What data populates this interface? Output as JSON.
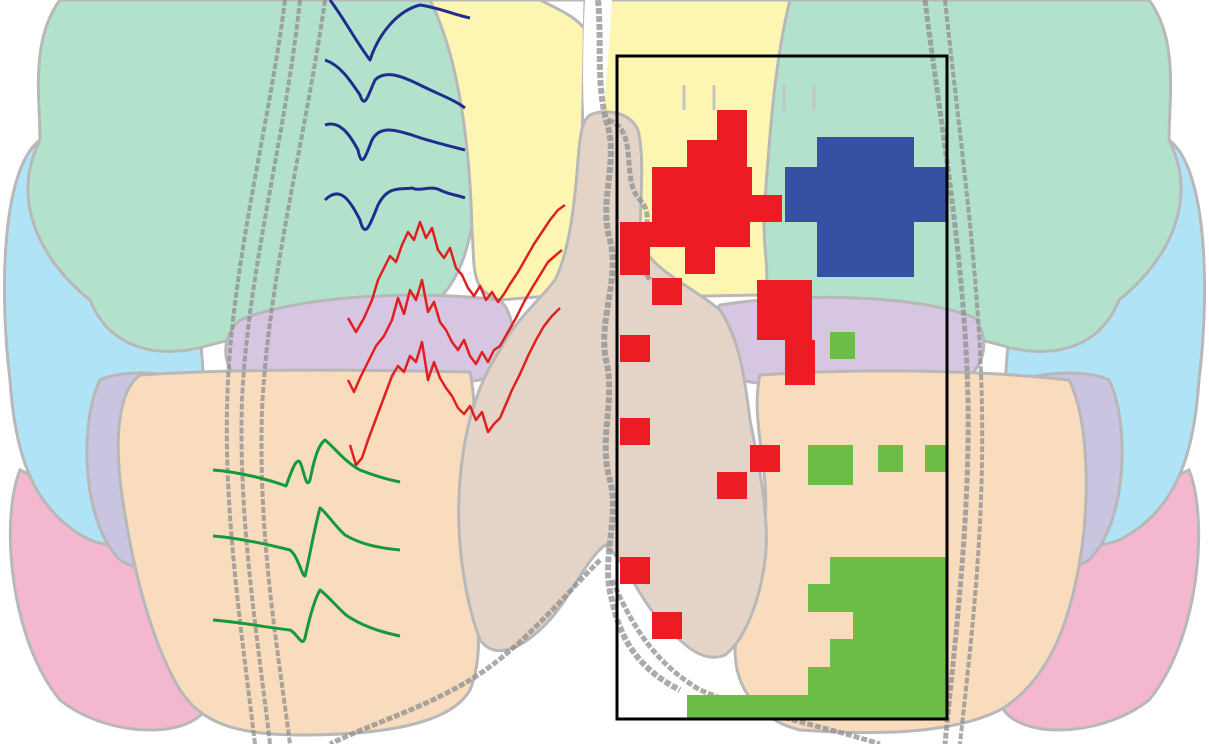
{
  "figure": {
    "description_colors": {
      "region_teal": "#b2e2cc",
      "region_yellow": "#fdf6b2",
      "region_lilac": "#d6c6e1",
      "region_peach": "#f8dcbd",
      "region_blue": "#afe3f5",
      "region_pink": "#f4b7d0",
      "region_lavender": "#c9c4e0",
      "region_beige": "#e4d4c8",
      "outline": "#b8b8b8",
      "rope": "#8f8f8f",
      "trace_blue": "#1f2d8c",
      "trace_red": "#e02020",
      "trace_green": "#139a3a",
      "cell_red": "#ed1c24",
      "cell_blue": "#3651a3",
      "cell_green": "#6cbd45",
      "box_frame": "#000000"
    },
    "trace_groups": [
      {
        "name": "blue-waveforms",
        "color": "#1f2d8c",
        "count": 4
      },
      {
        "name": "red-waveforms",
        "color": "#e02020",
        "count": 3
      },
      {
        "name": "green-waveforms",
        "color": "#139a3a",
        "count": 3
      }
    ],
    "grid_cell_groups": [
      {
        "name": "red-cells",
        "color": "#ed1c24"
      },
      {
        "name": "blue-cells",
        "color": "#3651a3"
      },
      {
        "name": "green-cells",
        "color": "#6cbd45"
      }
    ]
  }
}
